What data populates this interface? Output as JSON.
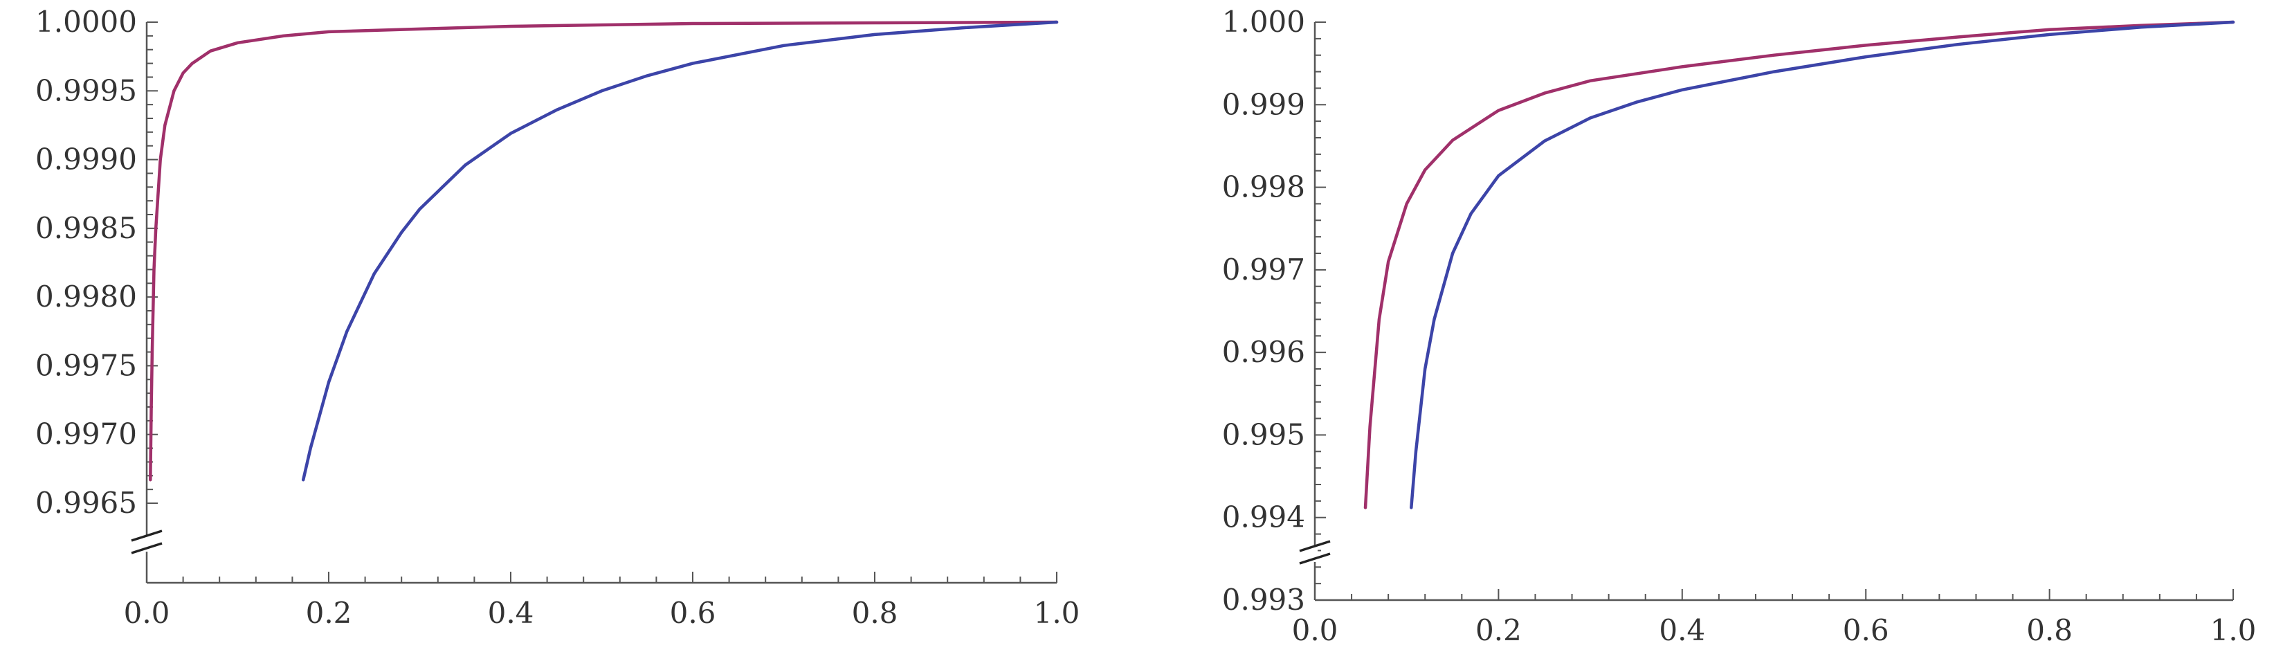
{
  "chart_data": [
    {
      "type": "line",
      "title": "",
      "xlabel": "",
      "ylabel": "",
      "xlim": [
        0.0,
        1.0
      ],
      "ylim": [
        0.9965,
        1.0
      ],
      "axis_break": "y-bottom",
      "grid": false,
      "legend": "none",
      "x_ticks": [
        "0.0",
        "0.2",
        "0.4",
        "0.6",
        "0.8",
        "1.0"
      ],
      "y_ticks": [
        "0.9965",
        "0.9970",
        "0.9975",
        "0.9980",
        "0.9985",
        "0.9990",
        "0.9995",
        "1.0000"
      ],
      "series": [
        {
          "color": "#a0306a",
          "x": [
            0.004,
            0.005,
            0.006,
            0.008,
            0.01,
            0.015,
            0.02,
            0.03,
            0.04,
            0.05,
            0.07,
            0.1,
            0.15,
            0.2,
            0.3,
            0.4,
            0.5,
            0.6,
            0.8,
            1.0
          ],
          "y": [
            0.99667,
            0.9972,
            0.9976,
            0.9982,
            0.9985,
            0.999,
            0.99925,
            0.9995,
            0.99963,
            0.9997,
            0.99979,
            0.99985,
            0.9999,
            0.99993,
            0.99995,
            0.99997,
            0.99998,
            0.99999,
            0.999995,
            1.0
          ]
        },
        {
          "color": "#3c44a8",
          "x": [
            0.172,
            0.18,
            0.2,
            0.22,
            0.25,
            0.28,
            0.3,
            0.35,
            0.4,
            0.45,
            0.5,
            0.55,
            0.6,
            0.7,
            0.8,
            0.9,
            1.0
          ],
          "y": [
            0.99667,
            0.9969,
            0.99738,
            0.99775,
            0.99817,
            0.99847,
            0.99864,
            0.99896,
            0.99919,
            0.99936,
            0.9995,
            0.99961,
            0.9997,
            0.99983,
            0.99991,
            0.99996,
            1.0
          ]
        }
      ]
    },
    {
      "type": "line",
      "title": "",
      "xlabel": "",
      "ylabel": "",
      "xlim": [
        0.0,
        1.0
      ],
      "ylim": [
        0.993,
        1.0
      ],
      "axis_break": "y-bottom",
      "grid": false,
      "legend": "none",
      "x_ticks": [
        "0.0",
        "0.2",
        "0.4",
        "0.6",
        "0.8",
        "1.0"
      ],
      "y_ticks": [
        "0.993",
        "0.994",
        "0.995",
        "0.996",
        "0.997",
        "0.998",
        "0.999",
        "1.000"
      ],
      "series": [
        {
          "color": "#a0306a",
          "x": [
            0.055,
            0.06,
            0.07,
            0.08,
            0.1,
            0.12,
            0.15,
            0.2,
            0.25,
            0.3,
            0.4,
            0.5,
            0.6,
            0.7,
            0.8,
            0.9,
            1.0
          ],
          "y": [
            0.99412,
            0.9951,
            0.9964,
            0.9971,
            0.9978,
            0.99821,
            0.99857,
            0.99893,
            0.99914,
            0.99929,
            0.99946,
            0.9996,
            0.99972,
            0.99982,
            0.99991,
            0.99996,
            1.0
          ]
        },
        {
          "color": "#3c44a8",
          "x": [
            0.105,
            0.11,
            0.12,
            0.13,
            0.15,
            0.17,
            0.2,
            0.25,
            0.3,
            0.35,
            0.4,
            0.5,
            0.6,
            0.7,
            0.8,
            0.9,
            1.0
          ],
          "y": [
            0.99412,
            0.9948,
            0.9958,
            0.9964,
            0.9972,
            0.99768,
            0.99814,
            0.99856,
            0.99884,
            0.99903,
            0.99918,
            0.9994,
            0.99958,
            0.99973,
            0.99985,
            0.99994,
            1.0
          ]
        }
      ]
    }
  ]
}
